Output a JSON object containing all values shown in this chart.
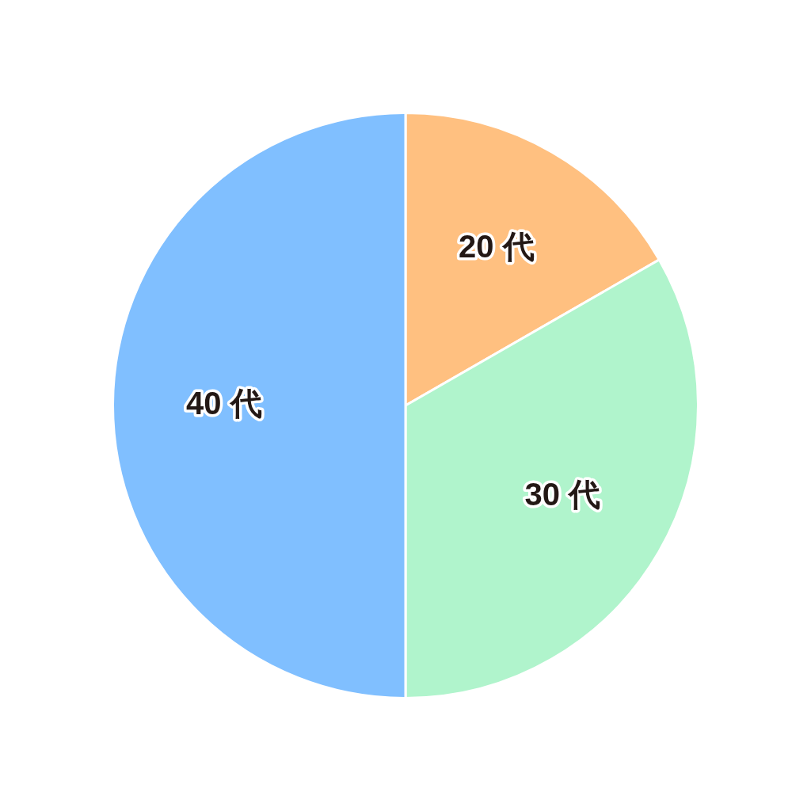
{
  "chart_data": {
    "type": "pie",
    "categories": [
      "20 代",
      "30 代",
      "40 代"
    ],
    "values": [
      16.7,
      33.3,
      50
    ],
    "colors": [
      "#ffc080",
      "#b0f4cc",
      "#80bfff"
    ]
  }
}
